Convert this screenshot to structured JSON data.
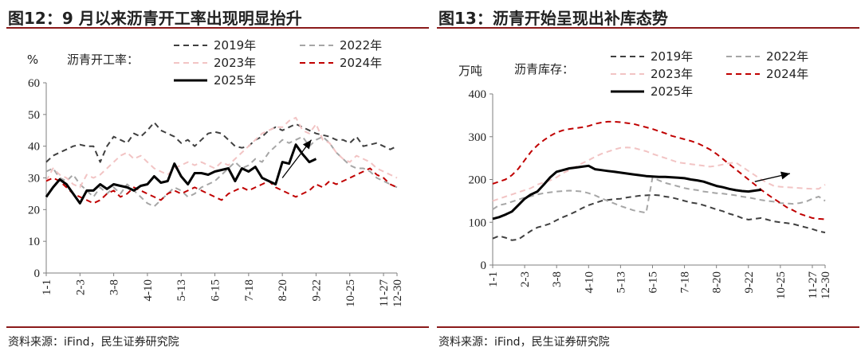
{
  "left": {
    "title": "图12：9 月以来沥青开工率出现明显抬升",
    "source": "资料来源：iFind，民生证券研究院",
    "unit": "%",
    "series_label": "沥青开工率：",
    "chart_data": {
      "type": "line",
      "title": "",
      "ylabel": "%",
      "ylim": [
        0,
        60
      ],
      "yticks": [
        0,
        10,
        20,
        30,
        40,
        50,
        60
      ],
      "x_domain": [
        1,
        53
      ],
      "xticks": [
        {
          "pos": 1,
          "label": "1-1"
        },
        {
          "pos": 6,
          "label": "2-3"
        },
        {
          "pos": 11,
          "label": "3-8"
        },
        {
          "pos": 16,
          "label": "4-10"
        },
        {
          "pos": 21,
          "label": "5-13"
        },
        {
          "pos": 26,
          "label": "6-15"
        },
        {
          "pos": 31,
          "label": "7-18"
        },
        {
          "pos": 36,
          "label": "8-20"
        },
        {
          "pos": 41,
          "label": "9-22"
        },
        {
          "pos": 46,
          "label": "10-25"
        },
        {
          "pos": 51,
          "label": "11-27"
        },
        {
          "pos": 56,
          "label": "12-30"
        }
      ],
      "x_note": "week index; 12-30 at week 53",
      "grid": false,
      "legend": [
        {
          "name": "2019年",
          "color": "#404040",
          "dash": "7,5",
          "width": 2
        },
        {
          "name": "2022年",
          "color": "#a6a6a6",
          "dash": "7,5",
          "width": 2
        },
        {
          "name": "2023年",
          "color": "#f2c4c4",
          "dash": "7,5",
          "width": 2
        },
        {
          "name": "2024年",
          "color": "#c00000",
          "dash": "7,5",
          "width": 2
        },
        {
          "name": "2025年",
          "color": "#000000",
          "dash": "",
          "width": 3
        }
      ],
      "series": [
        {
          "name": "2019年",
          "values": [
            35,
            37,
            38,
            39,
            40,
            40.5,
            40,
            40,
            35,
            40,
            43,
            42,
            41,
            44,
            43,
            45,
            47.5,
            45,
            44,
            43,
            41,
            42,
            40,
            42,
            44,
            44.5,
            44,
            42,
            40,
            39.5,
            40,
            42,
            43,
            45,
            46,
            45,
            46,
            47,
            46,
            45,
            44,
            43.5,
            43,
            42,
            42,
            41,
            43,
            40,
            40.5,
            41,
            40,
            39,
            40
          ]
        },
        {
          "name": "2022年",
          "values": [
            32,
            33,
            30,
            29,
            31,
            28,
            26,
            24,
            27,
            25,
            27,
            25,
            28,
            26,
            24,
            22,
            21,
            23,
            25,
            27,
            26,
            24,
            25,
            27,
            28,
            29,
            31,
            33,
            35,
            33,
            34,
            36,
            35,
            38,
            40,
            42,
            41,
            42,
            43,
            40,
            42,
            43,
            41,
            38,
            36,
            34,
            33,
            33,
            32,
            30,
            29,
            28,
            27
          ]
        },
        {
          "name": "2023年",
          "values": [
            29,
            33,
            31,
            30,
            28,
            27,
            31,
            30,
            31,
            33,
            35,
            37,
            38,
            36,
            37,
            35,
            33,
            32,
            31,
            33,
            34,
            35,
            34,
            35,
            34,
            33,
            35,
            34,
            36,
            38,
            40,
            42,
            44,
            45,
            46,
            46,
            48,
            49,
            45,
            44,
            47,
            42,
            41,
            38,
            36,
            35,
            37,
            36,
            35,
            33,
            32,
            31,
            30
          ]
        },
        {
          "name": "2024年",
          "values": [
            29,
            30,
            29,
            27,
            25,
            24,
            23,
            22,
            23,
            25,
            26,
            24,
            25,
            27,
            26,
            25,
            24,
            23,
            25,
            26,
            25,
            26,
            27,
            26,
            25,
            24,
            23,
            25,
            26,
            27,
            26,
            27,
            28,
            29,
            27,
            26,
            25,
            24,
            25,
            26,
            28,
            27,
            29,
            28,
            29,
            30,
            31,
            32,
            33,
            31,
            30,
            28,
            27
          ]
        },
        {
          "name": "2025年",
          "values": [
            24,
            27,
            29.5,
            28,
            25,
            22,
            26,
            26,
            28,
            26.5,
            28,
            27.5,
            27,
            26,
            27.5,
            28,
            30.5,
            28.5,
            29,
            34.5,
            30.5,
            28,
            31.5,
            31.5,
            31,
            32,
            32.5,
            33,
            29,
            33,
            32,
            33.5,
            30,
            29,
            28,
            35,
            34.5,
            40.5,
            37.5,
            35,
            36
          ]
        }
      ],
      "annotation": {
        "type": "arrow",
        "from": [
          36,
          30
        ],
        "to": [
          40.3,
          42
        ],
        "color": "#000000"
      }
    }
  },
  "right": {
    "title": "图13：沥青开始呈现出补库态势",
    "source": "资料来源：iFind，民生证券研究院",
    "unit": "万吨",
    "series_label": "沥青库存：",
    "chart_data": {
      "type": "line",
      "title": "",
      "ylabel": "万吨",
      "ylim": [
        0,
        400
      ],
      "yticks": [
        0,
        100,
        200,
        300,
        400
      ],
      "x_domain": [
        1,
        53
      ],
      "xticks": [
        {
          "pos": 1,
          "label": "1-1"
        },
        {
          "pos": 6,
          "label": "2-3"
        },
        {
          "pos": 11,
          "label": "3-8"
        },
        {
          "pos": 16,
          "label": "4-10"
        },
        {
          "pos": 21,
          "label": "5-13"
        },
        {
          "pos": 26,
          "label": "6-15"
        },
        {
          "pos": 31,
          "label": "7-18"
        },
        {
          "pos": 36,
          "label": "8-20"
        },
        {
          "pos": 41,
          "label": "9-22"
        },
        {
          "pos": 46,
          "label": "10-25"
        },
        {
          "pos": 51,
          "label": "11-27"
        },
        {
          "pos": 56,
          "label": "12-30"
        }
      ],
      "x_note": "week index; 12-30 at week 53",
      "grid": false,
      "legend": [
        {
          "name": "2019年",
          "color": "#404040",
          "dash": "7,5",
          "width": 2
        },
        {
          "name": "2022年",
          "color": "#a6a6a6",
          "dash": "7,5",
          "width": 2
        },
        {
          "name": "2023年",
          "color": "#f2c4c4",
          "dash": "7,5",
          "width": 2
        },
        {
          "name": "2024年",
          "color": "#c00000",
          "dash": "7,5",
          "width": 2
        },
        {
          "name": "2025年",
          "color": "#000000",
          "dash": "",
          "width": 3
        }
      ],
      "series": [
        {
          "name": "2019年",
          "values": [
            62,
            68,
            64,
            58,
            60,
            70,
            80,
            88,
            92,
            97,
            105,
            112,
            118,
            125,
            133,
            140,
            145,
            150,
            152,
            154,
            155,
            158,
            160,
            162,
            163,
            164,
            163,
            160,
            158,
            154,
            150,
            146,
            144,
            140,
            135,
            130,
            126,
            120,
            116,
            110,
            106,
            108,
            110,
            106,
            102,
            100,
            98,
            96,
            92,
            88,
            84,
            79,
            76
          ]
        },
        {
          "name": "2022年",
          "values": [
            130,
            140,
            143,
            148,
            153,
            158,
            161,
            165,
            168,
            170,
            172,
            173,
            174,
            173,
            172,
            168,
            163,
            156,
            150,
            144,
            138,
            133,
            128,
            125,
            122,
            205,
            198,
            192,
            188,
            184,
            180,
            177,
            175,
            172,
            170,
            168,
            167,
            165,
            163,
            160,
            158,
            155,
            152,
            150,
            148,
            145,
            144,
            143,
            145,
            148,
            155,
            160,
            150
          ]
        },
        {
          "name": "2023年",
          "values": [
            150,
            155,
            160,
            165,
            170,
            175,
            180,
            188,
            193,
            198,
            205,
            215,
            222,
            230,
            238,
            245,
            253,
            260,
            265,
            270,
            274,
            275,
            274,
            270,
            266,
            260,
            255,
            250,
            245,
            240,
            238,
            236,
            234,
            232,
            230,
            232,
            235,
            238,
            240,
            230,
            220,
            210,
            200,
            192,
            185,
            183,
            182,
            181,
            180,
            179,
            178,
            178,
            188
          ]
        },
        {
          "name": "2024年",
          "values": [
            190,
            195,
            200,
            210,
            225,
            245,
            265,
            280,
            292,
            302,
            310,
            315,
            318,
            320,
            322,
            325,
            330,
            333,
            335,
            335,
            334,
            332,
            330,
            326,
            322,
            318,
            313,
            308,
            302,
            298,
            294,
            290,
            285,
            278,
            270,
            260,
            248,
            236,
            224,
            212,
            200,
            188,
            176,
            165,
            155,
            145,
            135,
            128,
            120,
            115,
            110,
            108,
            107
          ]
        },
        {
          "name": "2025年",
          "values": [
            108,
            112,
            118,
            125,
            140,
            155,
            165,
            172,
            188,
            205,
            218,
            222,
            226,
            228,
            230,
            232,
            224,
            222,
            220,
            218,
            216,
            214,
            212,
            210,
            208,
            207,
            206,
            206,
            205,
            204,
            203,
            200,
            198,
            195,
            190,
            185,
            182,
            178,
            175,
            173,
            172,
            174,
            176
          ]
        }
      ],
      "annotation": {
        "type": "arrow",
        "from": [
          42,
          195
        ],
        "to": [
          47.5,
          214
        ],
        "color": "#000000"
      }
    }
  }
}
